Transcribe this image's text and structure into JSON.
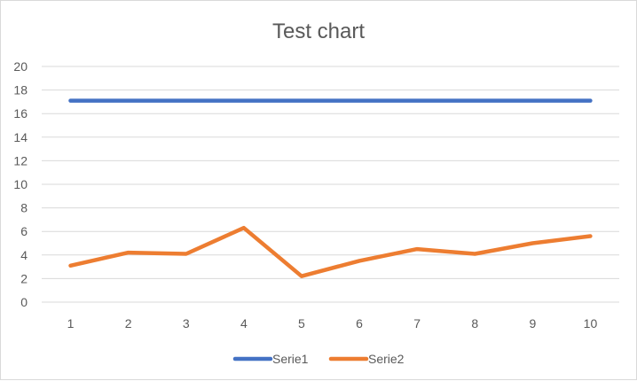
{
  "chart_data": {
    "type": "line",
    "title": "Test chart",
    "xlabel": "",
    "ylabel": "",
    "x": [
      1,
      2,
      3,
      4,
      5,
      6,
      7,
      8,
      9,
      10
    ],
    "x_tick_labels": [
      "1",
      "2",
      "3",
      "4",
      "5",
      "6",
      "7",
      "8",
      "9",
      "10"
    ],
    "ylim": [
      0,
      20
    ],
    "y_ticks": [
      0,
      2,
      4,
      6,
      8,
      10,
      12,
      14,
      16,
      18,
      20
    ],
    "y_tick_labels": [
      "0",
      "2",
      "4",
      "6",
      "8",
      "10",
      "12",
      "14",
      "16",
      "18",
      "20"
    ],
    "grid": "horizontal",
    "legend_position": "bottom",
    "series": [
      {
        "name": "Serie1",
        "color": "#4472C4",
        "values": [
          17.1,
          17.1,
          17.1,
          17.1,
          17.1,
          17.1,
          17.1,
          17.1,
          17.1,
          17.1
        ]
      },
      {
        "name": "Serie2",
        "color": "#ED7D31",
        "values": [
          3.1,
          4.2,
          4.1,
          6.3,
          2.2,
          3.5,
          4.5,
          4.1,
          5.0,
          5.6
        ]
      }
    ]
  }
}
